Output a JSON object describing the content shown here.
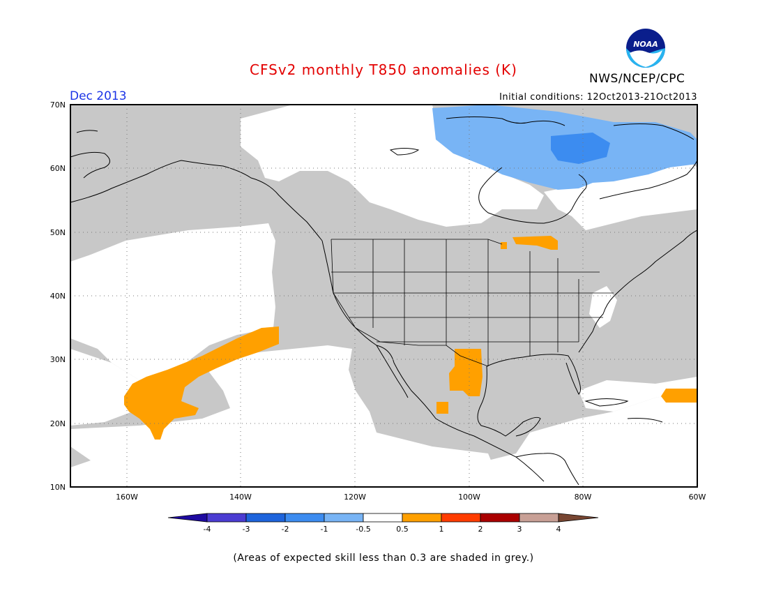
{
  "header": {
    "title": "CFSv2 monthly T850 anomalies (K)",
    "month": "Dec 2013",
    "initial_conditions": "Initial conditions: 12Oct2013-21Oct2013",
    "agency": "NWS/NCEP/CPC",
    "logo_text": "NOAA"
  },
  "map": {
    "lat_labels": [
      "70N",
      "60N",
      "50N",
      "40N",
      "30N",
      "20N",
      "10N"
    ],
    "lon_labels": [
      "160W",
      "140W",
      "120W",
      "100W",
      "80W",
      "60W"
    ],
    "grey_color": "#c8c8c8",
    "ocean_color": "#ffffff"
  },
  "colorbar": {
    "labels": [
      "-4",
      "-3",
      "-2",
      "-1",
      "-0.5",
      "0.5",
      "1",
      "2",
      "3",
      "4"
    ],
    "colors": [
      "#1e0aa0",
      "#4b3cd2",
      "#1e64dc",
      "#3c8cf0",
      "#78b4f5",
      "#ffffff",
      "#ffa000",
      "#ff3c00",
      "#aa0000",
      "#c8a096",
      "#784632"
    ]
  },
  "footnote": "(Areas of expected skill less than 0.3 are shaded in grey.)"
}
